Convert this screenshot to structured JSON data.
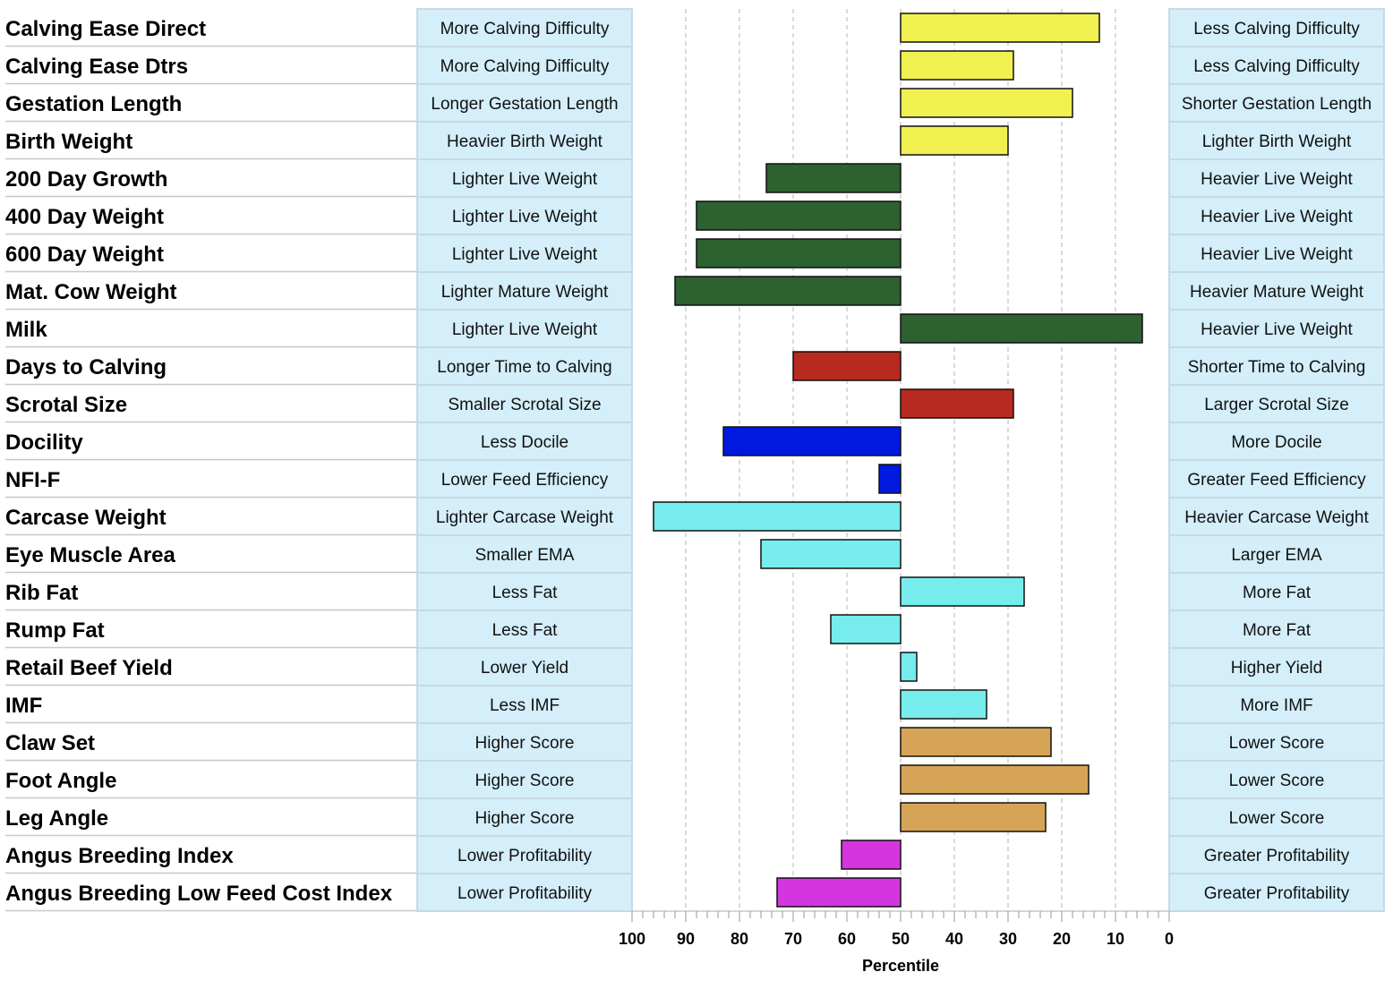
{
  "chart_data": {
    "type": "bar",
    "orientation": "horizontal",
    "xlabel": "Percentile",
    "xlim": [
      100,
      0
    ],
    "x_ticks": [
      "100",
      "90",
      "80",
      "70",
      "60",
      "50",
      "40",
      "30",
      "20",
      "10",
      "0"
    ],
    "baseline": 50,
    "grid": true,
    "colors": {
      "calving": "#f0f050",
      "growth": "#2d6130",
      "fertility": "#b8291f",
      "temperament": "#0019e0",
      "carcase": "#76ecec",
      "structure": "#d6a456",
      "index": "#d336df",
      "label_box_fill": "#d4eefa",
      "label_box_stroke": "#c6d9e3",
      "grid": "#b5b5b5",
      "row_line": "#c8c8c8"
    },
    "rows": [
      {
        "trait": "Calving Ease Direct",
        "left_label": "More Calving Difficulty",
        "right_label": "Less Calving Difficulty",
        "percentile": 13,
        "group": "calving"
      },
      {
        "trait": "Calving Ease Dtrs",
        "left_label": "More Calving Difficulty",
        "right_label": "Less Calving Difficulty",
        "percentile": 29,
        "group": "calving"
      },
      {
        "trait": "Gestation Length",
        "left_label": "Longer Gestation Length",
        "right_label": "Shorter Gestation Length",
        "percentile": 18,
        "group": "calving"
      },
      {
        "trait": "Birth Weight",
        "left_label": "Heavier Birth Weight",
        "right_label": "Lighter Birth Weight",
        "percentile": 30,
        "group": "calving"
      },
      {
        "trait": "200 Day Growth",
        "left_label": "Lighter Live Weight",
        "right_label": "Heavier Live Weight",
        "percentile": 75,
        "group": "growth"
      },
      {
        "trait": "400 Day Weight",
        "left_label": "Lighter Live Weight",
        "right_label": "Heavier Live Weight",
        "percentile": 88,
        "group": "growth"
      },
      {
        "trait": "600 Day Weight",
        "left_label": "Lighter Live Weight",
        "right_label": "Heavier Live Weight",
        "percentile": 88,
        "group": "growth"
      },
      {
        "trait": "Mat. Cow Weight",
        "left_label": "Lighter Mature Weight",
        "right_label": "Heavier Mature Weight",
        "percentile": 92,
        "group": "growth"
      },
      {
        "trait": "Milk",
        "left_label": "Lighter Live Weight",
        "right_label": "Heavier Live Weight",
        "percentile": 5,
        "group": "growth"
      },
      {
        "trait": "Days to Calving",
        "left_label": "Longer Time to Calving",
        "right_label": "Shorter Time to Calving",
        "percentile": 70,
        "group": "fertility"
      },
      {
        "trait": "Scrotal Size",
        "left_label": "Smaller Scrotal Size",
        "right_label": "Larger Scrotal Size",
        "percentile": 29,
        "group": "fertility"
      },
      {
        "trait": "Docility",
        "left_label": "Less Docile",
        "right_label": "More Docile",
        "percentile": 83,
        "group": "temperament"
      },
      {
        "trait": "NFI-F",
        "left_label": "Lower Feed Efficiency",
        "right_label": "Greater Feed Efficiency",
        "percentile": 54,
        "group": "temperament"
      },
      {
        "trait": "Carcase Weight",
        "left_label": "Lighter Carcase Weight",
        "right_label": "Heavier Carcase Weight",
        "percentile": 96,
        "group": "carcase"
      },
      {
        "trait": "Eye Muscle Area",
        "left_label": "Smaller EMA",
        "right_label": "Larger EMA",
        "percentile": 76,
        "group": "carcase"
      },
      {
        "trait": "Rib Fat",
        "left_label": "Less Fat",
        "right_label": "More Fat",
        "percentile": 27,
        "group": "carcase"
      },
      {
        "trait": "Rump Fat",
        "left_label": "Less Fat",
        "right_label": "More Fat",
        "percentile": 63,
        "group": "carcase"
      },
      {
        "trait": "Retail Beef Yield",
        "left_label": "Lower Yield",
        "right_label": "Higher Yield",
        "percentile": 47,
        "group": "carcase"
      },
      {
        "trait": "IMF",
        "left_label": "Less IMF",
        "right_label": "More IMF",
        "percentile": 34,
        "group": "carcase"
      },
      {
        "trait": "Claw Set",
        "left_label": "Higher Score",
        "right_label": "Lower Score",
        "percentile": 22,
        "group": "structure"
      },
      {
        "trait": "Foot Angle",
        "left_label": "Higher Score",
        "right_label": "Lower Score",
        "percentile": 15,
        "group": "structure"
      },
      {
        "trait": "Leg Angle",
        "left_label": "Higher Score",
        "right_label": "Lower Score",
        "percentile": 23,
        "group": "structure"
      },
      {
        "trait": "Angus Breeding Index",
        "left_label": "Lower Profitability",
        "right_label": "Greater Profitability",
        "percentile": 61,
        "group": "index"
      },
      {
        "trait": "Angus Breeding Low Feed Cost Index",
        "left_label": "Lower Profitability",
        "right_label": "Greater Profitability",
        "percentile": 73,
        "group": "index"
      }
    ]
  }
}
